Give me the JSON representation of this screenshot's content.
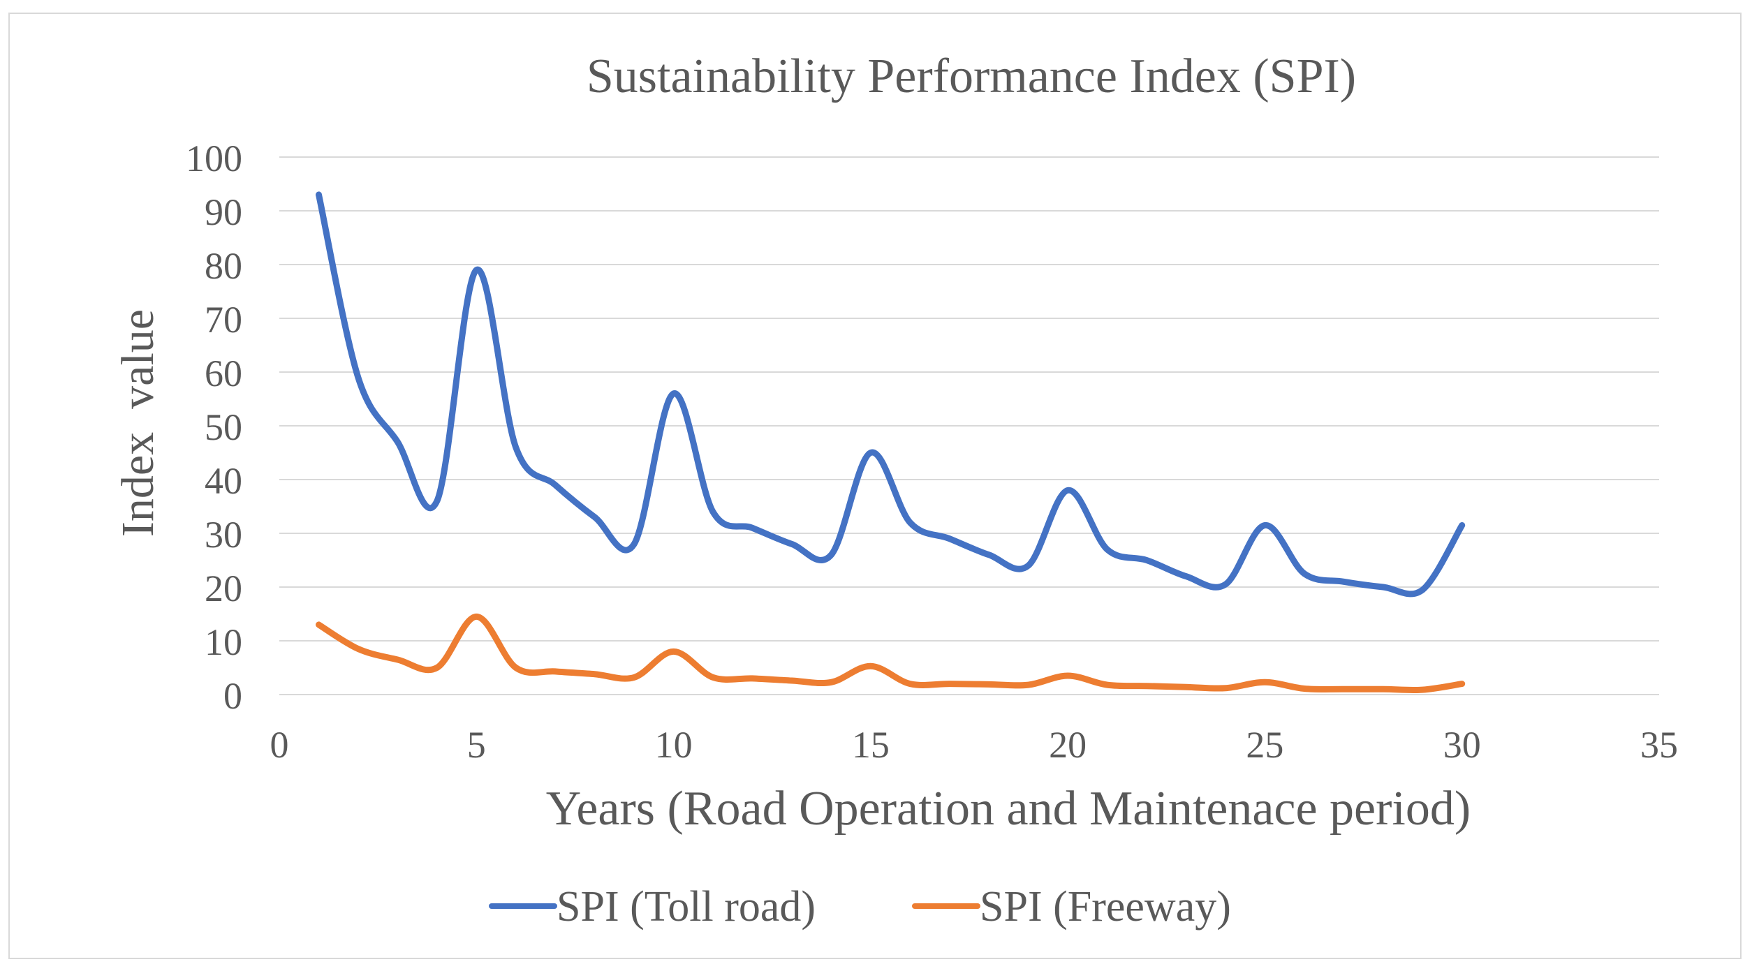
{
  "chart_data": {
    "type": "line",
    "title": "Sustainability Performance Index (SPI)",
    "xlabel": "Years (Road Operation and Maintenace period)",
    "ylabel": "Index  value",
    "xlim": [
      0,
      35
    ],
    "ylim": [
      0,
      100
    ],
    "x_ticks": [
      0,
      5,
      10,
      15,
      20,
      25,
      30,
      35
    ],
    "y_ticks": [
      0,
      10,
      20,
      30,
      40,
      50,
      60,
      70,
      80,
      90,
      100
    ],
    "grid": "horizontal",
    "legend_position": "bottom",
    "x": [
      1,
      2,
      3,
      4,
      5,
      6,
      7,
      8,
      9,
      10,
      11,
      12,
      13,
      14,
      15,
      16,
      17,
      18,
      19,
      20,
      21,
      22,
      23,
      24,
      25,
      26,
      27,
      28,
      29,
      30
    ],
    "series": [
      {
        "name": "SPI (Toll road)",
        "color": "#4472C4",
        "values": [
          93,
          59,
          47,
          36,
          79,
          46,
          39,
          33,
          28,
          56,
          34,
          31,
          28,
          26,
          45,
          32,
          29,
          26,
          24,
          38,
          27,
          25,
          22,
          20.5,
          31.5,
          22.5,
          21,
          20,
          19.5,
          31.5
        ]
      },
      {
        "name": "SPI (Freeway)",
        "color": "#ED7D31",
        "values": [
          13,
          8.5,
          6.5,
          5,
          14.5,
          5,
          4.3,
          3.8,
          3.2,
          8,
          3.2,
          3,
          2.6,
          2.3,
          5.3,
          2,
          2,
          1.9,
          1.8,
          3.5,
          1.8,
          1.6,
          1.4,
          1.2,
          2.3,
          1.1,
          1,
          1,
          0.9,
          2
        ]
      }
    ]
  }
}
